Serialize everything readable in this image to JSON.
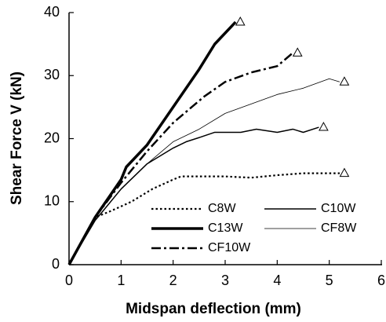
{
  "chart_data": {
    "type": "line",
    "xlabel": "Midspan deflection (mm)",
    "ylabel": "Shear Force V (kN)",
    "xlim": [
      0,
      6
    ],
    "xticks": [
      0,
      1,
      2,
      3,
      4,
      5,
      6
    ],
    "ylim": [
      0,
      40
    ],
    "yticks": [
      0,
      10,
      20,
      30,
      40
    ],
    "end_marker": "triangle",
    "series": [
      {
        "name": "C8W",
        "color": "#000000",
        "style": "dotted",
        "width": 2.2,
        "x": [
          0,
          0.5,
          0.8,
          1.2,
          1.6,
          2,
          2.15,
          2.6,
          3,
          3.5,
          4,
          4.5,
          5.2
        ],
        "values": [
          0,
          7.5,
          8.5,
          10,
          12,
          13.5,
          14,
          14,
          14,
          13.8,
          14.2,
          14.5,
          14.5
        ]
      },
      {
        "name": "C10W",
        "color": "#000000",
        "style": "solid",
        "width": 1.5,
        "x": [
          0,
          0.5,
          1,
          1.5,
          2,
          2.25,
          2.55,
          2.8,
          3.3,
          3.6,
          4,
          4.3,
          4.5,
          4.8
        ],
        "values": [
          0,
          7,
          12,
          16,
          18.5,
          19.5,
          20.3,
          21,
          21,
          21.5,
          21,
          21.5,
          21,
          21.8
        ]
      },
      {
        "name": "C13W",
        "color": "#000000",
        "style": "solid",
        "width": 3.5,
        "x": [
          0,
          0.5,
          1,
          1.1,
          1.5,
          2,
          2.5,
          2.8,
          3.2
        ],
        "values": [
          0,
          7.5,
          13.5,
          15.5,
          19,
          25,
          31,
          35,
          38.5
        ]
      },
      {
        "name": "CF8W",
        "color": "#000000",
        "style": "solid",
        "width": 0.8,
        "x": [
          0,
          0.5,
          1,
          1.5,
          2,
          2.5,
          3,
          3.5,
          4,
          4.5,
          5,
          5.2
        ],
        "values": [
          0,
          7,
          12,
          16,
          19.5,
          21.5,
          24,
          25.5,
          27,
          28,
          29.5,
          29
        ]
      },
      {
        "name": "CF10W",
        "color": "#000000",
        "style": "dashdot",
        "width": 2.5,
        "x": [
          0,
          0.5,
          1,
          1.5,
          2,
          2.6,
          3,
          3.5,
          4,
          4.3
        ],
        "values": [
          0,
          7.5,
          13,
          18,
          22.5,
          26.7,
          29,
          30.5,
          31.5,
          33.6
        ]
      }
    ]
  }
}
